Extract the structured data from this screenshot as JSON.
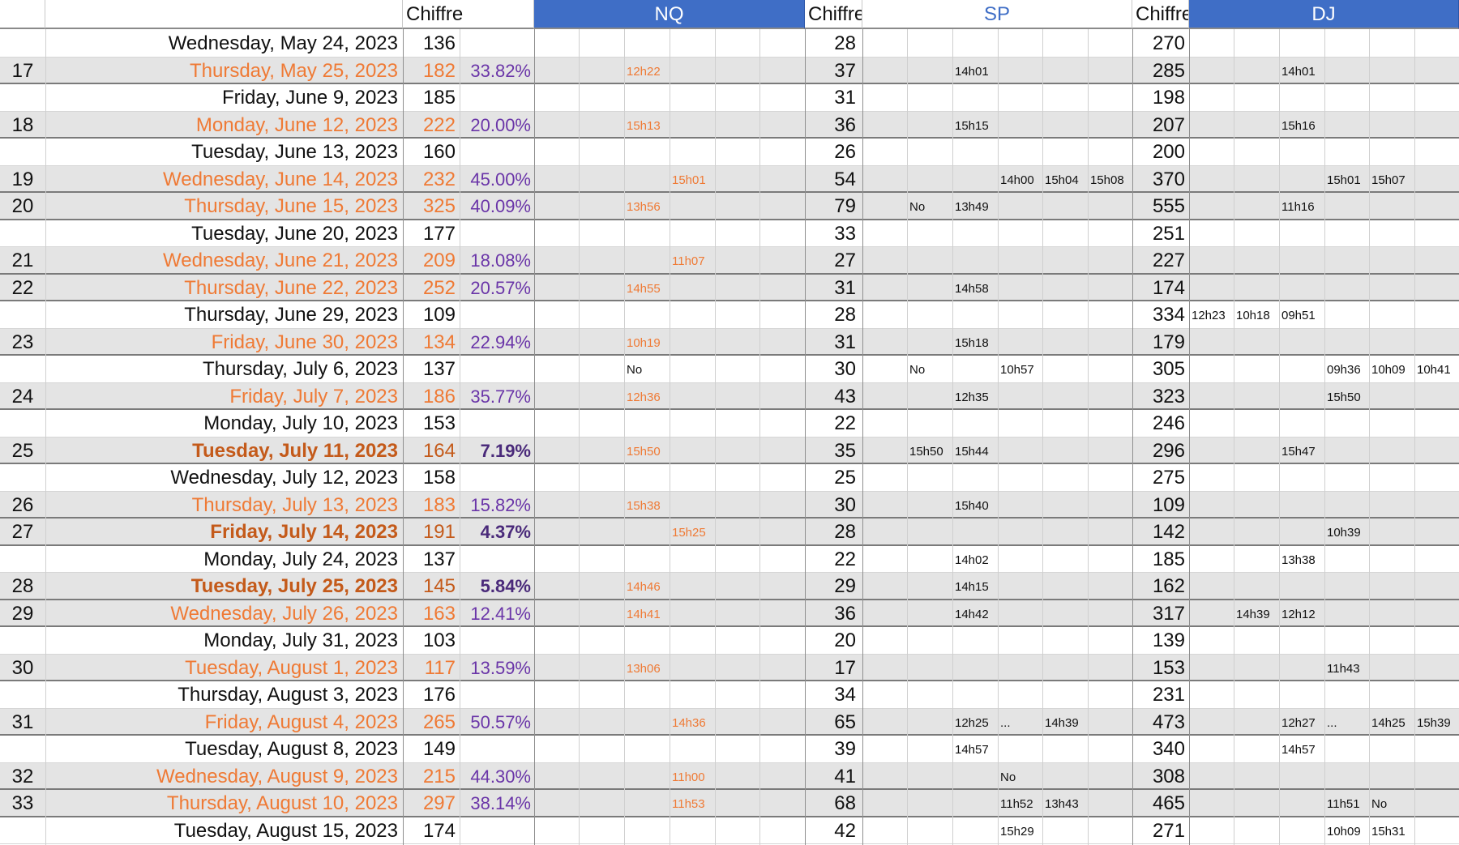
{
  "headers": {
    "nq_chiffre": "Chiffre",
    "nq_band": "NQ",
    "sp_chiffre": "Chiffre",
    "sp_band": "SP",
    "dj_chiffre": "Chiffre",
    "dj_band": "DJ"
  },
  "rows": [
    {
      "week": "",
      "date": "Wednesday, May 24, 2023",
      "nq": "136",
      "pct": "",
      "sp": "28",
      "dj": "270",
      "style": "plain",
      "times": []
    },
    {
      "week": "17",
      "date": "Thursday, May 25, 2023",
      "nq": "182",
      "pct": "33.82%",
      "sp": "37",
      "dj": "285",
      "style": "hi",
      "times": [
        {
          "col": 2,
          "text": "12h22",
          "orange": true
        },
        {
          "col": 8,
          "text": "14h01"
        },
        {
          "col": 14,
          "text": "14h01"
        }
      ]
    },
    {
      "week": "",
      "date": "Friday, June 9, 2023",
      "nq": "185",
      "pct": "",
      "sp": "31",
      "dj": "198",
      "style": "plain",
      "times": []
    },
    {
      "week": "18",
      "date": "Monday, June 12, 2023",
      "nq": "222",
      "pct": "20.00%",
      "sp": "36",
      "dj": "207",
      "style": "hi",
      "times": [
        {
          "col": 2,
          "text": "15h13",
          "orange": true
        },
        {
          "col": 8,
          "text": "15h15"
        },
        {
          "col": 14,
          "text": "15h16"
        }
      ]
    },
    {
      "week": "",
      "date": "Tuesday, June 13, 2023",
      "nq": "160",
      "pct": "",
      "sp": "26",
      "dj": "200",
      "style": "plain",
      "times": []
    },
    {
      "week": "19",
      "date": "Wednesday, June 14, 2023",
      "nq": "232",
      "pct": "45.00%",
      "sp": "54",
      "dj": "370",
      "style": "hi",
      "times": [
        {
          "col": 3,
          "text": "15h01",
          "orange": true
        },
        {
          "col": 9,
          "text": "14h00"
        },
        {
          "col": 10,
          "text": "15h04"
        },
        {
          "col": 11,
          "text": "15h08"
        },
        {
          "col": 15,
          "text": "15h01"
        },
        {
          "col": 16,
          "text": "15h07"
        }
      ]
    },
    {
      "week": "20",
      "date": "Thursday, June 15, 2023",
      "nq": "325",
      "pct": "40.09%",
      "sp": "79",
      "dj": "555",
      "style": "hi",
      "times": [
        {
          "col": 2,
          "text": "13h56",
          "orange": true
        },
        {
          "col": 7,
          "text": "No"
        },
        {
          "col": 8,
          "text": "13h49"
        },
        {
          "col": 14,
          "text": "11h16"
        }
      ]
    },
    {
      "week": "",
      "date": "Tuesday, June 20, 2023",
      "nq": "177",
      "pct": "",
      "sp": "33",
      "dj": "251",
      "style": "plain",
      "times": []
    },
    {
      "week": "21",
      "date": "Wednesday, June 21, 2023",
      "nq": "209",
      "pct": "18.08%",
      "sp": "27",
      "dj": "227",
      "style": "hi",
      "times": [
        {
          "col": 3,
          "text": "11h07",
          "orange": true
        }
      ]
    },
    {
      "week": "22",
      "date": "Thursday, June 22, 2023",
      "nq": "252",
      "pct": "20.57%",
      "sp": "31",
      "dj": "174",
      "style": "hi",
      "times": [
        {
          "col": 2,
          "text": "14h55",
          "orange": true
        },
        {
          "col": 8,
          "text": "14h58"
        }
      ]
    },
    {
      "week": "",
      "date": "Thursday, June 29, 2023",
      "nq": "109",
      "pct": "",
      "sp": "28",
      "dj": "334",
      "style": "plain",
      "times": [
        {
          "col": 12,
          "text": "12h23"
        },
        {
          "col": 13,
          "text": "10h18"
        },
        {
          "col": 14,
          "text": "09h51"
        }
      ]
    },
    {
      "week": "23",
      "date": "Friday, June 30, 2023",
      "nq": "134",
      "pct": "22.94%",
      "sp": "31",
      "dj": "179",
      "style": "hi",
      "times": [
        {
          "col": 2,
          "text": "10h19",
          "orange": true
        },
        {
          "col": 8,
          "text": "15h18"
        }
      ]
    },
    {
      "week": "",
      "date": "Thursday, July 6, 2023",
      "nq": "137",
      "pct": "",
      "sp": "30",
      "dj": "305",
      "style": "plain",
      "times": [
        {
          "col": 2,
          "text": "No"
        },
        {
          "col": 7,
          "text": "No"
        },
        {
          "col": 9,
          "text": "10h57"
        },
        {
          "col": 15,
          "text": "09h36"
        },
        {
          "col": 16,
          "text": "10h09"
        },
        {
          "col": 17,
          "text": "10h41"
        }
      ]
    },
    {
      "week": "24",
      "date": "Friday, July 7, 2023",
      "nq": "186",
      "pct": "35.77%",
      "sp": "43",
      "dj": "323",
      "style": "hi",
      "times": [
        {
          "col": 2,
          "text": "12h36",
          "orange": true
        },
        {
          "col": 8,
          "text": "12h35"
        },
        {
          "col": 15,
          "text": "15h50"
        }
      ]
    },
    {
      "week": "",
      "date": "Monday, July 10, 2023",
      "nq": "153",
      "pct": "",
      "sp": "22",
      "dj": "246",
      "style": "plain",
      "times": []
    },
    {
      "week": "25",
      "date": "Tuesday, July 11, 2023",
      "nq": "164",
      "pct": "7.19%",
      "sp": "35",
      "dj": "296",
      "style": "bold",
      "times": [
        {
          "col": 2,
          "text": "15h50",
          "orange": true
        },
        {
          "col": 7,
          "text": "15h50"
        },
        {
          "col": 8,
          "text": "15h44"
        },
        {
          "col": 14,
          "text": "15h47"
        }
      ]
    },
    {
      "week": "",
      "date": "Wednesday, July 12, 2023",
      "nq": "158",
      "pct": "",
      "sp": "25",
      "dj": "275",
      "style": "plain",
      "times": []
    },
    {
      "week": "26",
      "date": "Thursday, July 13, 2023",
      "nq": "183",
      "pct": "15.82%",
      "sp": "30",
      "dj": "109",
      "style": "hi",
      "times": [
        {
          "col": 2,
          "text": "15h38",
          "orange": true
        },
        {
          "col": 8,
          "text": "15h40"
        }
      ]
    },
    {
      "week": "27",
      "date": "Friday, July 14, 2023",
      "nq": "191",
      "pct": "4.37%",
      "sp": "28",
      "dj": "142",
      "style": "bold",
      "times": [
        {
          "col": 3,
          "text": "15h25",
          "orange": true
        },
        {
          "col": 15,
          "text": "10h39"
        }
      ]
    },
    {
      "week": "",
      "date": "Monday, July 24, 2023",
      "nq": "137",
      "pct": "",
      "sp": "22",
      "dj": "185",
      "style": "plain",
      "times": [
        {
          "col": 8,
          "text": "14h02"
        },
        {
          "col": 14,
          "text": "13h38"
        }
      ]
    },
    {
      "week": "28",
      "date": "Tuesday, July 25, 2023",
      "nq": "145",
      "pct": "5.84%",
      "sp": "29",
      "dj": "162",
      "style": "bold",
      "times": [
        {
          "col": 2,
          "text": "14h46",
          "orange": true
        },
        {
          "col": 8,
          "text": "14h15"
        }
      ]
    },
    {
      "week": "29",
      "date": "Wednesday, July 26, 2023",
      "nq": "163",
      "pct": "12.41%",
      "sp": "36",
      "dj": "317",
      "style": "hi",
      "times": [
        {
          "col": 2,
          "text": "14h41",
          "orange": true
        },
        {
          "col": 8,
          "text": "14h42"
        },
        {
          "col": 13,
          "text": "14h39"
        },
        {
          "col": 14,
          "text": "12h12"
        }
      ]
    },
    {
      "week": "",
      "date": "Monday, July 31, 2023",
      "nq": "103",
      "pct": "",
      "sp": "20",
      "dj": "139",
      "style": "plain",
      "times": []
    },
    {
      "week": "30",
      "date": "Tuesday, August 1, 2023",
      "nq": "117",
      "pct": "13.59%",
      "sp": "17",
      "dj": "153",
      "style": "hi",
      "times": [
        {
          "col": 2,
          "text": "13h06",
          "orange": true
        },
        {
          "col": 15,
          "text": "11h43"
        }
      ]
    },
    {
      "week": "",
      "date": "Thursday, August 3, 2023",
      "nq": "176",
      "pct": "",
      "sp": "34",
      "dj": "231",
      "style": "plain",
      "times": []
    },
    {
      "week": "31",
      "date": "Friday, August 4, 2023",
      "nq": "265",
      "pct": "50.57%",
      "sp": "65",
      "dj": "473",
      "style": "hi",
      "times": [
        {
          "col": 3,
          "text": "14h36",
          "orange": true
        },
        {
          "col": 8,
          "text": "12h25"
        },
        {
          "col": 9,
          "text": "..."
        },
        {
          "col": 10,
          "text": "14h39"
        },
        {
          "col": 14,
          "text": "12h27"
        },
        {
          "col": 15,
          "text": "..."
        },
        {
          "col": 16,
          "text": "14h25"
        },
        {
          "col": 17,
          "text": "15h39"
        }
      ]
    },
    {
      "week": "",
      "date": "Tuesday, August 8, 2023",
      "nq": "149",
      "pct": "",
      "sp": "39",
      "dj": "340",
      "style": "plain",
      "times": [
        {
          "col": 8,
          "text": "14h57"
        },
        {
          "col": 14,
          "text": "14h57"
        }
      ]
    },
    {
      "week": "32",
      "date": "Wednesday, August 9, 2023",
      "nq": "215",
      "pct": "44.30%",
      "sp": "41",
      "dj": "308",
      "style": "hi",
      "times": [
        {
          "col": 3,
          "text": "11h00",
          "orange": true
        },
        {
          "col": 9,
          "text": "No"
        }
      ]
    },
    {
      "week": "33",
      "date": "Thursday, August 10, 2023",
      "nq": "297",
      "pct": "38.14%",
      "sp": "68",
      "dj": "465",
      "style": "hi",
      "times": [
        {
          "col": 3,
          "text": "11h53",
          "orange": true
        },
        {
          "col": 9,
          "text": "11h52"
        },
        {
          "col": 10,
          "text": "13h43"
        },
        {
          "col": 15,
          "text": "11h51"
        },
        {
          "col": 16,
          "text": "No"
        }
      ]
    },
    {
      "week": "",
      "date": "Tuesday, August 15, 2023",
      "nq": "174",
      "pct": "",
      "sp": "42",
      "dj": "271",
      "style": "plain",
      "times": [
        {
          "col": 9,
          "text": "15h29"
        },
        {
          "col": 15,
          "text": "10h09"
        },
        {
          "col": 16,
          "text": "15h31"
        }
      ]
    }
  ]
}
